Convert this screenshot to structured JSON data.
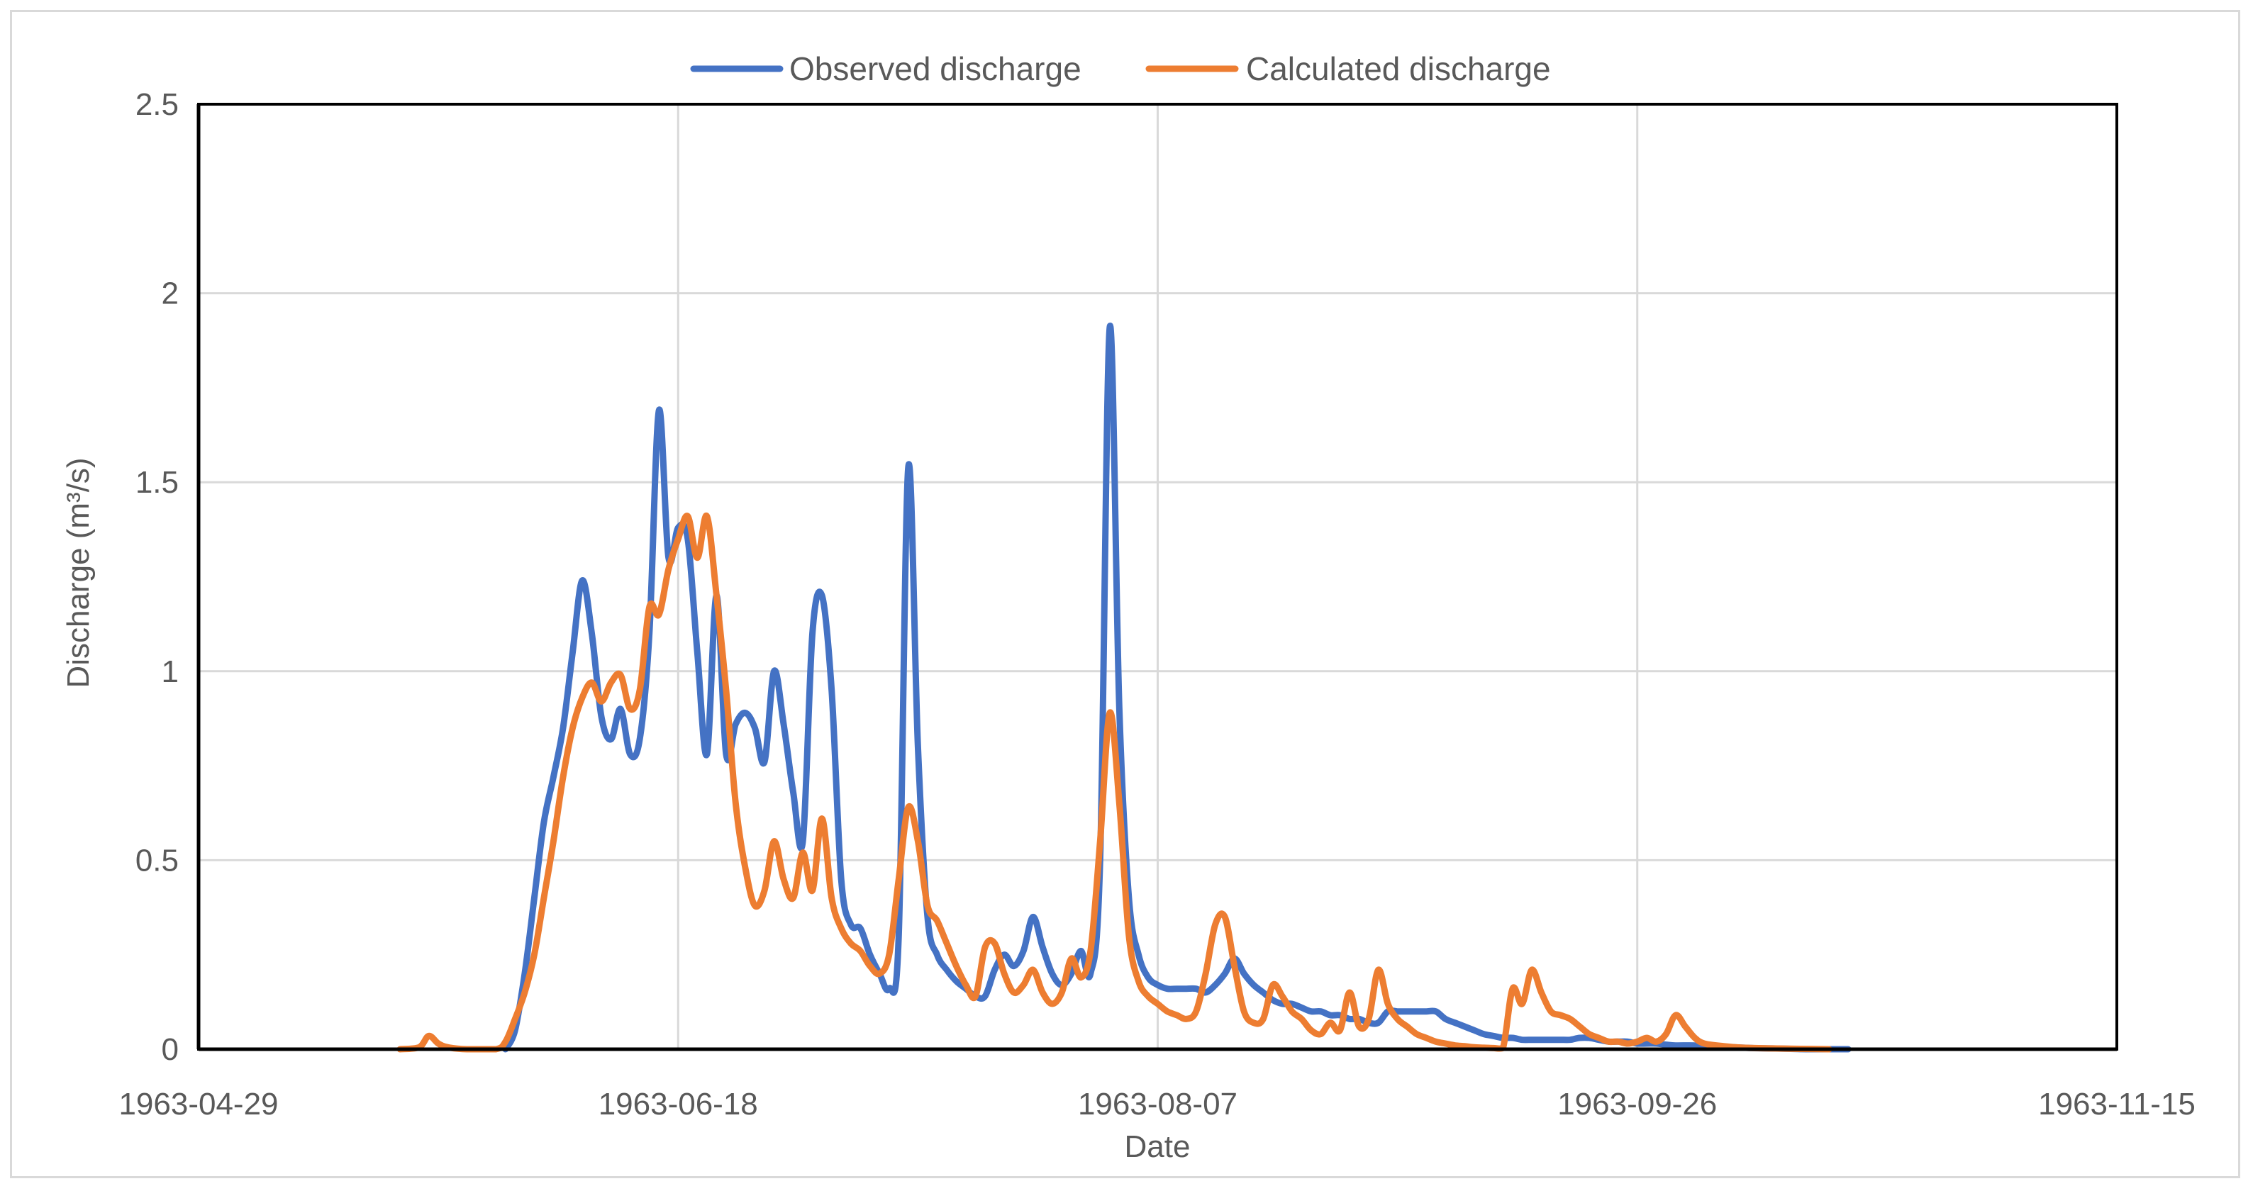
{
  "chart_data": {
    "type": "line",
    "xlabel": "Date",
    "ylabel": "Discharge (m³/s)",
    "ylim": [
      0,
      2.5
    ],
    "yticks": [
      0,
      0.5,
      1,
      1.5,
      2,
      2.5
    ],
    "ytick_labels": [
      "0",
      "0.5",
      "1",
      "1.5",
      "2",
      "2.5"
    ],
    "xlim": [
      "1963-04-29",
      "1963-11-15"
    ],
    "xticks": [
      "1963-04-29",
      "1963-06-18",
      "1963-08-07",
      "1963-09-26",
      "1963-11-15"
    ],
    "grid": true,
    "legend": "top-center",
    "series": [
      {
        "name": "Observed discharge",
        "color": "#4472c4",
        "points": [
          [
            "1963-05-31",
            0
          ],
          [
            "1963-06-01",
            0.05
          ],
          [
            "1963-06-02",
            0.2
          ],
          [
            "1963-06-03",
            0.4
          ],
          [
            "1963-06-04",
            0.6
          ],
          [
            "1963-06-05",
            0.72
          ],
          [
            "1963-06-06",
            0.85
          ],
          [
            "1963-06-07",
            1.05
          ],
          [
            "1963-06-08",
            1.24
          ],
          [
            "1963-06-09",
            1.1
          ],
          [
            "1963-06-10",
            0.88
          ],
          [
            "1963-06-11",
            0.82
          ],
          [
            "1963-06-12",
            0.9
          ],
          [
            "1963-06-13",
            0.78
          ],
          [
            "1963-06-14",
            0.82
          ],
          [
            "1963-06-15",
            1.1
          ],
          [
            "1963-06-16",
            1.69
          ],
          [
            "1963-06-17",
            1.3
          ],
          [
            "1963-06-18",
            1.38
          ],
          [
            "1963-06-19",
            1.35
          ],
          [
            "1963-06-20",
            1.05
          ],
          [
            "1963-06-21",
            0.78
          ],
          [
            "1963-06-22",
            1.2
          ],
          [
            "1963-06-23",
            0.78
          ],
          [
            "1963-06-24",
            0.86
          ],
          [
            "1963-06-25",
            0.89
          ],
          [
            "1963-06-26",
            0.85
          ],
          [
            "1963-06-27",
            0.76
          ],
          [
            "1963-06-28",
            1.0
          ],
          [
            "1963-06-29",
            0.86
          ],
          [
            "1963-06-30",
            0.68
          ],
          [
            "1963-07-01",
            0.55
          ],
          [
            "1963-07-02",
            1.1
          ],
          [
            "1963-07-03",
            1.2
          ],
          [
            "1963-07-04",
            0.95
          ],
          [
            "1963-07-05",
            0.45
          ],
          [
            "1963-07-06",
            0.33
          ],
          [
            "1963-07-07",
            0.32
          ],
          [
            "1963-07-08",
            0.25
          ],
          [
            "1963-07-09",
            0.2
          ],
          [
            "1963-07-10",
            0.16
          ],
          [
            "1963-07-11",
            0.3
          ],
          [
            "1963-07-12",
            1.54
          ],
          [
            "1963-07-13",
            0.8
          ],
          [
            "1963-07-14",
            0.35
          ],
          [
            "1963-07-15",
            0.25
          ],
          [
            "1963-07-16",
            0.21
          ],
          [
            "1963-07-17",
            0.18
          ],
          [
            "1963-07-18",
            0.16
          ],
          [
            "1963-07-19",
            0.14
          ],
          [
            "1963-07-20",
            0.14
          ],
          [
            "1963-07-21",
            0.21
          ],
          [
            "1963-07-22",
            0.25
          ],
          [
            "1963-07-23",
            0.22
          ],
          [
            "1963-07-24",
            0.26
          ],
          [
            "1963-07-25",
            0.35
          ],
          [
            "1963-07-26",
            0.27
          ],
          [
            "1963-07-27",
            0.2
          ],
          [
            "1963-07-28",
            0.17
          ],
          [
            "1963-07-29",
            0.2
          ],
          [
            "1963-07-30",
            0.26
          ],
          [
            "1963-07-31",
            0.2
          ],
          [
            "1963-08-01",
            0.5
          ],
          [
            "1963-08-02",
            1.91
          ],
          [
            "1963-08-03",
            0.9
          ],
          [
            "1963-08-04",
            0.4
          ],
          [
            "1963-08-05",
            0.25
          ],
          [
            "1963-08-06",
            0.19
          ],
          [
            "1963-08-07",
            0.17
          ],
          [
            "1963-08-08",
            0.16
          ],
          [
            "1963-08-09",
            0.16
          ],
          [
            "1963-08-10",
            0.16
          ],
          [
            "1963-08-11",
            0.16
          ],
          [
            "1963-08-12",
            0.15
          ],
          [
            "1963-08-13",
            0.17
          ],
          [
            "1963-08-14",
            0.2
          ],
          [
            "1963-08-15",
            0.24
          ],
          [
            "1963-08-16",
            0.2
          ],
          [
            "1963-08-17",
            0.17
          ],
          [
            "1963-08-18",
            0.15
          ],
          [
            "1963-08-19",
            0.13
          ],
          [
            "1963-08-20",
            0.12
          ],
          [
            "1963-08-21",
            0.12
          ],
          [
            "1963-08-22",
            0.11
          ],
          [
            "1963-08-23",
            0.1
          ],
          [
            "1963-08-24",
            0.1
          ],
          [
            "1963-08-25",
            0.09
          ],
          [
            "1963-08-26",
            0.09
          ],
          [
            "1963-08-27",
            0.08
          ],
          [
            "1963-08-28",
            0.08
          ],
          [
            "1963-08-29",
            0.07
          ],
          [
            "1963-08-30",
            0.07
          ],
          [
            "1963-08-31",
            0.1
          ],
          [
            "1963-09-01",
            0.1
          ],
          [
            "1963-09-02",
            0.1
          ],
          [
            "1963-09-03",
            0.1
          ],
          [
            "1963-09-04",
            0.1
          ],
          [
            "1963-09-05",
            0.1
          ],
          [
            "1963-09-06",
            0.08
          ],
          [
            "1963-09-07",
            0.07
          ],
          [
            "1963-09-08",
            0.06
          ],
          [
            "1963-09-09",
            0.05
          ],
          [
            "1963-09-10",
            0.04
          ],
          [
            "1963-09-11",
            0.035
          ],
          [
            "1963-09-12",
            0.03
          ],
          [
            "1963-09-13",
            0.03
          ],
          [
            "1963-09-14",
            0.025
          ],
          [
            "1963-09-15",
            0.025
          ],
          [
            "1963-09-16",
            0.025
          ],
          [
            "1963-09-17",
            0.025
          ],
          [
            "1963-09-18",
            0.025
          ],
          [
            "1963-09-19",
            0.025
          ],
          [
            "1963-09-20",
            0.03
          ],
          [
            "1963-09-21",
            0.03
          ],
          [
            "1963-09-22",
            0.025
          ],
          [
            "1963-09-23",
            0.02
          ],
          [
            "1963-09-24",
            0.02
          ],
          [
            "1963-09-25",
            0.02
          ],
          [
            "1963-09-26",
            0.015
          ],
          [
            "1963-09-27",
            0.015
          ],
          [
            "1963-09-28",
            0.015
          ],
          [
            "1963-09-29",
            0.012
          ],
          [
            "1963-09-30",
            0.01
          ],
          [
            "1963-10-02",
            0.01
          ],
          [
            "1963-10-04",
            0.008
          ],
          [
            "1963-10-06",
            0.005
          ],
          [
            "1963-10-08",
            0.003
          ],
          [
            "1963-10-10",
            0.002
          ],
          [
            "1963-10-12",
            0.001
          ],
          [
            "1963-10-14",
            0
          ],
          [
            "1963-10-18",
            0
          ]
        ]
      },
      {
        "name": "Calculated discharge",
        "color": "#ed7d31",
        "points": [
          [
            "1963-05-20",
            0
          ],
          [
            "1963-05-22",
            0.005
          ],
          [
            "1963-05-23",
            0.035
          ],
          [
            "1963-05-24",
            0.015
          ],
          [
            "1963-05-25",
            0.005
          ],
          [
            "1963-05-27",
            0
          ],
          [
            "1963-05-30",
            0
          ],
          [
            "1963-05-31",
            0.02
          ],
          [
            "1963-06-01",
            0.08
          ],
          [
            "1963-06-02",
            0.15
          ],
          [
            "1963-06-03",
            0.25
          ],
          [
            "1963-06-04",
            0.4
          ],
          [
            "1963-06-05",
            0.55
          ],
          [
            "1963-06-06",
            0.72
          ],
          [
            "1963-06-07",
            0.85
          ],
          [
            "1963-06-08",
            0.93
          ],
          [
            "1963-06-09",
            0.97
          ],
          [
            "1963-06-10",
            0.92
          ],
          [
            "1963-06-11",
            0.97
          ],
          [
            "1963-06-12",
            0.99
          ],
          [
            "1963-06-13",
            0.9
          ],
          [
            "1963-06-14",
            0.95
          ],
          [
            "1963-06-15",
            1.17
          ],
          [
            "1963-06-16",
            1.15
          ],
          [
            "1963-06-17",
            1.27
          ],
          [
            "1963-06-18",
            1.35
          ],
          [
            "1963-06-19",
            1.41
          ],
          [
            "1963-06-20",
            1.3
          ],
          [
            "1963-06-21",
            1.41
          ],
          [
            "1963-06-22",
            1.2
          ],
          [
            "1963-06-23",
            0.95
          ],
          [
            "1963-06-24",
            0.65
          ],
          [
            "1963-06-25",
            0.48
          ],
          [
            "1963-06-26",
            0.38
          ],
          [
            "1963-06-27",
            0.42
          ],
          [
            "1963-06-28",
            0.55
          ],
          [
            "1963-06-29",
            0.45
          ],
          [
            "1963-06-30",
            0.4
          ],
          [
            "1963-07-01",
            0.52
          ],
          [
            "1963-07-02",
            0.42
          ],
          [
            "1963-07-03",
            0.61
          ],
          [
            "1963-07-04",
            0.4
          ],
          [
            "1963-07-05",
            0.32
          ],
          [
            "1963-07-06",
            0.28
          ],
          [
            "1963-07-07",
            0.26
          ],
          [
            "1963-07-08",
            0.22
          ],
          [
            "1963-07-09",
            0.2
          ],
          [
            "1963-07-10",
            0.25
          ],
          [
            "1963-07-11",
            0.45
          ],
          [
            "1963-07-12",
            0.64
          ],
          [
            "1963-07-13",
            0.55
          ],
          [
            "1963-07-14",
            0.38
          ],
          [
            "1963-07-15",
            0.34
          ],
          [
            "1963-07-16",
            0.28
          ],
          [
            "1963-07-17",
            0.22
          ],
          [
            "1963-07-18",
            0.17
          ],
          [
            "1963-07-19",
            0.14
          ],
          [
            "1963-07-20",
            0.27
          ],
          [
            "1963-07-21",
            0.28
          ],
          [
            "1963-07-22",
            0.2
          ],
          [
            "1963-07-23",
            0.15
          ],
          [
            "1963-07-24",
            0.17
          ],
          [
            "1963-07-25",
            0.21
          ],
          [
            "1963-07-26",
            0.15
          ],
          [
            "1963-07-27",
            0.12
          ],
          [
            "1963-07-28",
            0.15
          ],
          [
            "1963-07-29",
            0.24
          ],
          [
            "1963-07-30",
            0.19
          ],
          [
            "1963-07-31",
            0.26
          ],
          [
            "1963-08-01",
            0.55
          ],
          [
            "1963-08-02",
            0.89
          ],
          [
            "1963-08-03",
            0.65
          ],
          [
            "1963-08-04",
            0.3
          ],
          [
            "1963-08-05",
            0.18
          ],
          [
            "1963-08-06",
            0.14
          ],
          [
            "1963-08-07",
            0.12
          ],
          [
            "1963-08-08",
            0.1
          ],
          [
            "1963-08-09",
            0.09
          ],
          [
            "1963-08-10",
            0.08
          ],
          [
            "1963-08-11",
            0.1
          ],
          [
            "1963-08-12",
            0.2
          ],
          [
            "1963-08-13",
            0.33
          ],
          [
            "1963-08-14",
            0.35
          ],
          [
            "1963-08-15",
            0.22
          ],
          [
            "1963-08-16",
            0.1
          ],
          [
            "1963-08-17",
            0.07
          ],
          [
            "1963-08-18",
            0.08
          ],
          [
            "1963-08-19",
            0.17
          ],
          [
            "1963-08-20",
            0.14
          ],
          [
            "1963-08-21",
            0.1
          ],
          [
            "1963-08-22",
            0.08
          ],
          [
            "1963-08-23",
            0.05
          ],
          [
            "1963-08-24",
            0.04
          ],
          [
            "1963-08-25",
            0.07
          ],
          [
            "1963-08-26",
            0.05
          ],
          [
            "1963-08-27",
            0.15
          ],
          [
            "1963-08-28",
            0.06
          ],
          [
            "1963-08-29",
            0.08
          ],
          [
            "1963-08-30",
            0.21
          ],
          [
            "1963-08-31",
            0.12
          ],
          [
            "1963-09-01",
            0.08
          ],
          [
            "1963-09-02",
            0.06
          ],
          [
            "1963-09-03",
            0.04
          ],
          [
            "1963-09-04",
            0.03
          ],
          [
            "1963-09-05",
            0.02
          ],
          [
            "1963-09-06",
            0.015
          ],
          [
            "1963-09-07",
            0.01
          ],
          [
            "1963-09-08",
            0.008
          ],
          [
            "1963-09-09",
            0.005
          ],
          [
            "1963-09-10",
            0.004
          ],
          [
            "1963-09-11",
            0.003
          ],
          [
            "1963-09-12",
            0.003
          ],
          [
            "1963-09-13",
            0.16
          ],
          [
            "1963-09-14",
            0.12
          ],
          [
            "1963-09-15",
            0.21
          ],
          [
            "1963-09-16",
            0.15
          ],
          [
            "1963-09-17",
            0.1
          ],
          [
            "1963-09-18",
            0.09
          ],
          [
            "1963-09-19",
            0.08
          ],
          [
            "1963-09-20",
            0.06
          ],
          [
            "1963-09-21",
            0.04
          ],
          [
            "1963-09-22",
            0.03
          ],
          [
            "1963-09-23",
            0.02
          ],
          [
            "1963-09-24",
            0.02
          ],
          [
            "1963-09-25",
            0.015
          ],
          [
            "1963-09-26",
            0.02
          ],
          [
            "1963-09-27",
            0.03
          ],
          [
            "1963-09-28",
            0.02
          ],
          [
            "1963-09-29",
            0.04
          ],
          [
            "1963-09-30",
            0.09
          ],
          [
            "1963-10-01",
            0.06
          ],
          [
            "1963-10-02",
            0.03
          ],
          [
            "1963-10-03",
            0.015
          ],
          [
            "1963-10-05",
            0.008
          ],
          [
            "1963-10-07",
            0.004
          ],
          [
            "1963-10-10",
            0.002
          ],
          [
            "1963-10-13",
            0.001
          ],
          [
            "1963-10-16",
            0
          ]
        ]
      }
    ]
  }
}
